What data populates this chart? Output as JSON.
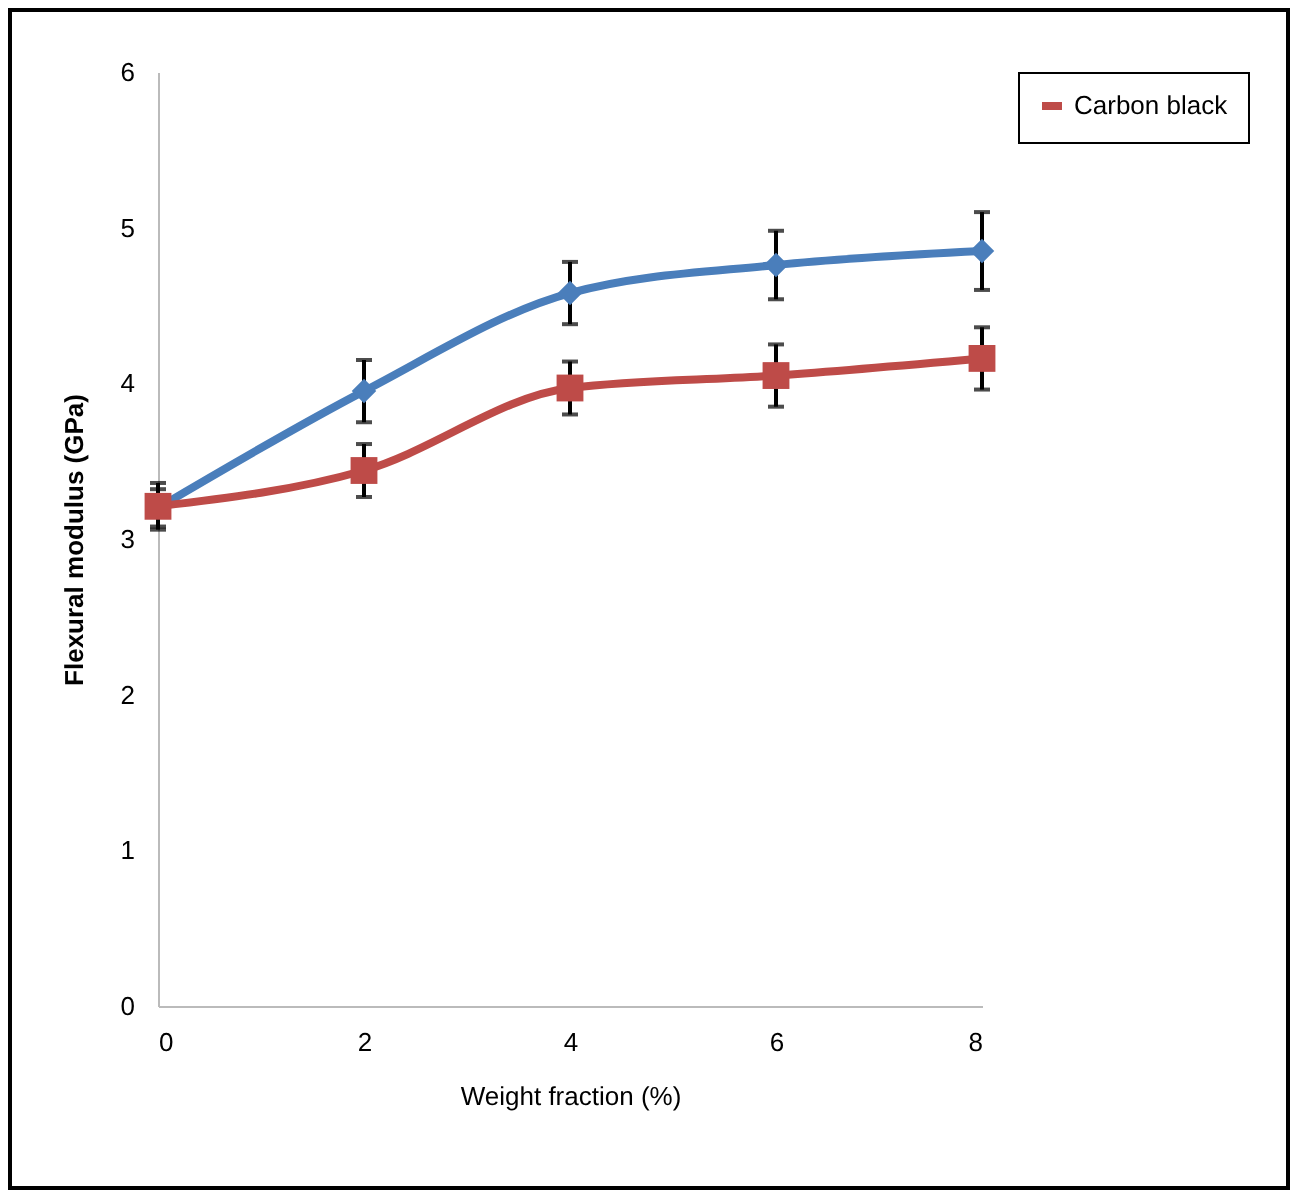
{
  "chart_data": {
    "type": "line",
    "xlabel": "Weight fraction (%)",
    "ylabel": "Flexural modulus (GPa)",
    "x": [
      0,
      2,
      4,
      6,
      8
    ],
    "series": [
      {
        "color": "#4a7ebb",
        "marker": "diamond",
        "values": [
          3.2,
          3.95,
          4.58,
          4.76,
          4.85
        ],
        "errors": [
          0.12,
          0.2,
          0.2,
          0.22,
          0.25
        ]
      },
      {
        "name": "Carbon black",
        "color": "#be4b48",
        "marker": "square",
        "values": [
          3.21,
          3.44,
          3.97,
          4.05,
          4.16
        ],
        "errors": [
          0.15,
          0.17,
          0.17,
          0.2,
          0.2
        ]
      }
    ],
    "xlim": [
      0,
      8
    ],
    "xticks": [
      0,
      2,
      4,
      6,
      8
    ],
    "ylim": [
      0,
      6
    ],
    "yticks": [
      0,
      1,
      2,
      3,
      4,
      5,
      6
    ],
    "grid": false,
    "legend": "right"
  }
}
